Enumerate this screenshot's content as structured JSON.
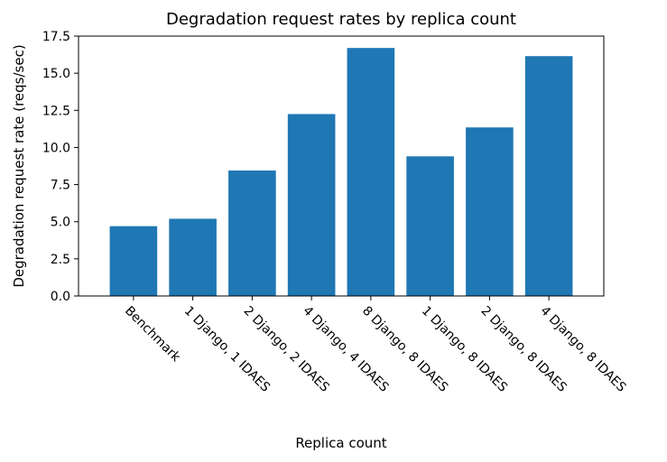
{
  "chart_data": {
    "type": "bar",
    "title": "Degradation request rates by replica count",
    "xlabel": "Replica count",
    "ylabel": "Degradation request rate (reqs/sec)",
    "categories": [
      "Benchmark",
      "1 Django, 1 IDAES",
      "2 Django, 2 IDAES",
      "4 Django, 4 IDAES",
      "8 Django, 8 IDAES",
      "1 Django, 8 IDAES",
      "2 Django, 8 IDAES",
      "4 Django, 8 IDAES"
    ],
    "values": [
      4.7,
      5.2,
      8.45,
      12.25,
      16.7,
      9.4,
      11.35,
      16.15
    ],
    "ylim": [
      0,
      17.5
    ],
    "yticks": [
      "0.0",
      "2.5",
      "5.0",
      "7.5",
      "10.0",
      "12.5",
      "15.0",
      "17.5"
    ],
    "bar_color": "#1f77b4",
    "grid": false,
    "tick_label_rotation": "-45"
  }
}
